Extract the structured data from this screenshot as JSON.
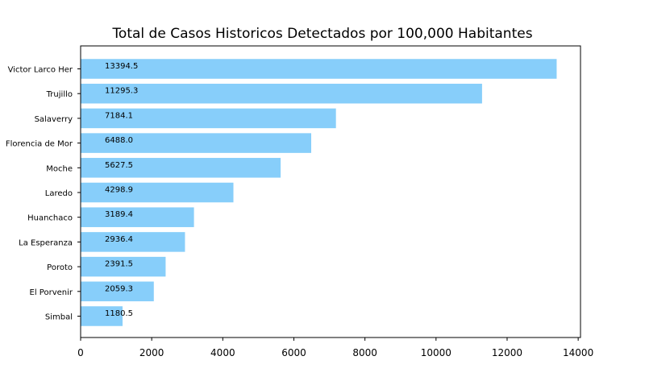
{
  "chart_data": {
    "type": "bar",
    "orientation": "horizontal",
    "title": "Total de Casos Historicos Detectados por 100,000 Habitantes",
    "xlabel": "",
    "ylabel": "",
    "categories": [
      "Victor Larco Her",
      "Trujillo",
      "Salaverry",
      "Florencia de Mor",
      "Moche",
      "Laredo",
      "Huanchaco",
      "La Esperanza",
      "Poroto",
      "El Porvenir",
      "Simbal"
    ],
    "values": [
      13394.5,
      11295.3,
      7184.1,
      6488.0,
      5627.5,
      4298.9,
      3189.4,
      2936.4,
      2391.5,
      2059.3,
      1180.5
    ],
    "value_labels": [
      "13394.5",
      "11295.3",
      "7184.1",
      "6488.0",
      "5627.5",
      "4298.9",
      "3189.4",
      "2936.4",
      "2391.5",
      "2059.3",
      "1180.5"
    ],
    "xticks": [
      0,
      2000,
      4000,
      6000,
      8000,
      10000,
      12000,
      14000
    ],
    "xlim": [
      0,
      14065
    ],
    "grid": false,
    "bar_color": "#87cefa"
  }
}
